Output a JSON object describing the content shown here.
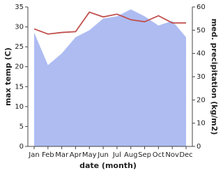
{
  "chart_data": {
    "type": "line-area",
    "x_label": "date (month)",
    "y_label": "max temp (C)",
    "y2_label": "med. precipitation (kg/m2)",
    "categories": [
      "Jan",
      "Feb",
      "Mar",
      "Apr",
      "May",
      "Jun",
      "Jul",
      "Aug",
      "Sep",
      "Oct",
      "Nov",
      "Dec"
    ],
    "series": [
      {
        "name": "med. precipitation",
        "type": "area",
        "axis": "y2",
        "color": "#aebcf2",
        "values": [
          49,
          35,
          40,
          47,
          50,
          55,
          56,
          59,
          56,
          52,
          54,
          47
        ]
      },
      {
        "name": "max temp",
        "type": "line",
        "color": "#c0504d",
        "values": [
          29.5,
          28.2,
          28.6,
          28.8,
          33.7,
          32.5,
          33.2,
          31.8,
          31.3,
          32.8,
          31.0,
          31.0
        ]
      }
    ],
    "ylim": [
      0,
      35
    ],
    "yticks": [
      0,
      5,
      10,
      15,
      20,
      25,
      30,
      35
    ],
    "y2lim": [
      0,
      60
    ],
    "y2ticks": [
      0,
      10,
      20,
      30,
      40,
      50,
      60
    ]
  }
}
